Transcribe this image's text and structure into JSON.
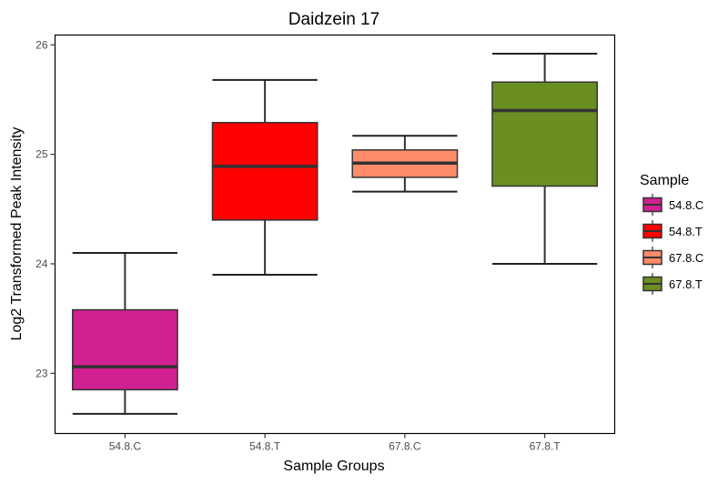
{
  "chart_data": {
    "type": "boxplot",
    "title": "Daidzein 17",
    "xlabel": "Sample Groups",
    "ylabel": "Log2 Transformed Peak Intensity",
    "ylim": [
      22.45,
      26.09
    ],
    "yticks": [
      23,
      24,
      25,
      26
    ],
    "grid": false,
    "categories": [
      "54.8.C",
      "54.8.T",
      "67.8.C",
      "67.8.T"
    ],
    "boxes": [
      {
        "name": "54.8.C",
        "min": 22.63,
        "q1": 22.85,
        "median": 23.06,
        "q3": 23.58,
        "max": 24.1,
        "color": "#D12090"
      },
      {
        "name": "54.8.T",
        "min": 23.9,
        "q1": 24.4,
        "median": 24.89,
        "q3": 25.29,
        "max": 25.68,
        "color": "#FF0000"
      },
      {
        "name": "67.8.C",
        "min": 24.66,
        "q1": 24.79,
        "median": 24.92,
        "q3": 25.04,
        "max": 25.17,
        "color": "#FF8C69"
      },
      {
        "name": "67.8.T",
        "min": 24.0,
        "q1": 24.71,
        "median": 25.4,
        "q3": 25.66,
        "max": 25.92,
        "color": "#6B8E23"
      }
    ],
    "legend": {
      "title": "Sample",
      "position": "right",
      "entries": [
        "54.8.C",
        "54.8.T",
        "67.8.C",
        "67.8.T"
      ]
    }
  }
}
